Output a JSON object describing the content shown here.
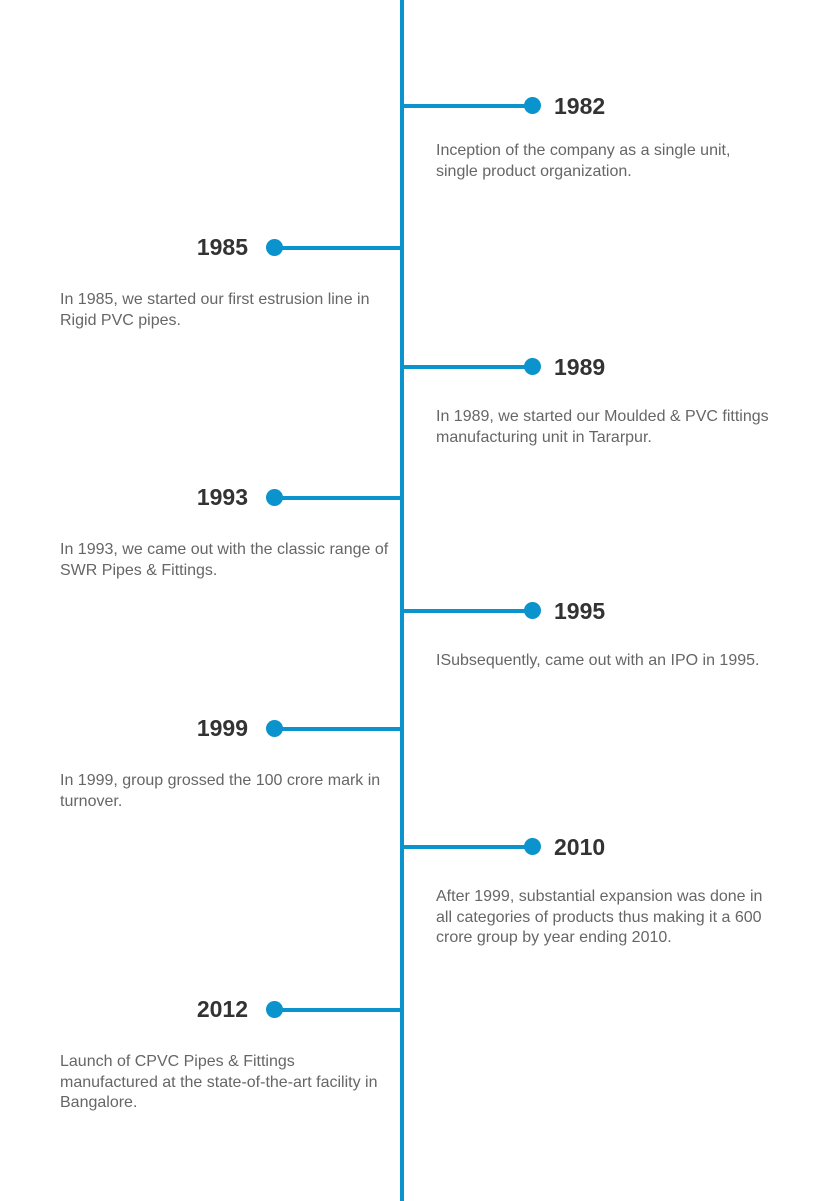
{
  "accent_color": "#0a93cc",
  "timeline": {
    "events": [
      {
        "year": "1982",
        "text": "Inception of the company as a single unit, single product organization."
      },
      {
        "year": "1985",
        "text": "In 1985, we started our first estrusion line in Rigid PVC pipes."
      },
      {
        "year": "1989",
        "text": "In 1989, we started our Moulded & PVC fittings manufacturing unit in Tararpur."
      },
      {
        "year": "1993",
        "text": "In 1993, we came out with the classic range of SWR Pipes & Fittings."
      },
      {
        "year": "1995",
        "text": "ISubsequently, came out with an IPO in 1995."
      },
      {
        "year": "1999",
        "text": "In 1999, group grossed the 100 crore mark in turnover."
      },
      {
        "year": "2010",
        "text": "After 1999, substantial expansion was done in all categories of products thus making it a 600 crore group by year ending 2010."
      },
      {
        "year": "2012",
        "text": "Launch of CPVC Pipes & Fittings manufactured at the state-of-the-art facility in Bangalore."
      }
    ]
  }
}
